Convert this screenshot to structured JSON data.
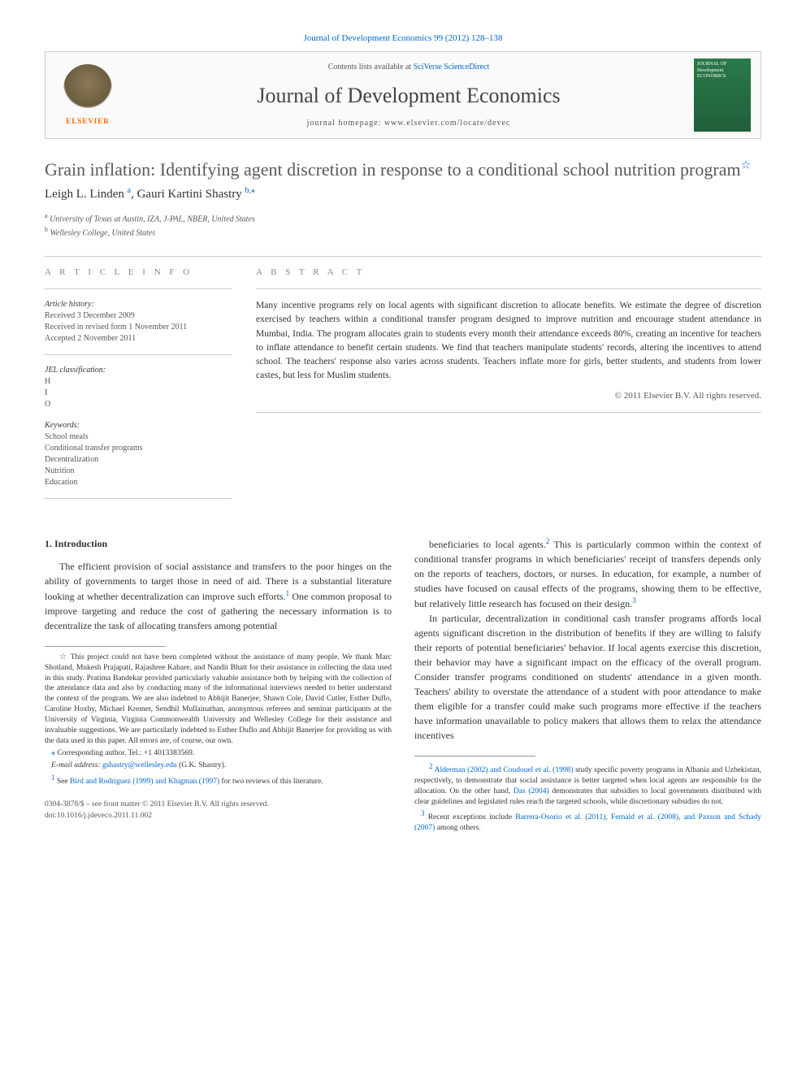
{
  "header": {
    "top_link": "Journal of Development Economics 99 (2012) 128–138",
    "contents_prefix": "Contents lists available at ",
    "contents_link": "SciVerse ScienceDirect",
    "journal_title": "Journal of Development Economics",
    "homepage_prefix": "journal homepage: ",
    "homepage_url": "www.elsevier.com/locate/devec",
    "elsevier_label": "ELSEVIER",
    "cover_text": "JOURNAL OF Development ECONOMICS"
  },
  "article": {
    "title": "Grain inflation: Identifying agent discretion in response to a conditional school nutrition program",
    "title_star": "☆",
    "authors_html": "Leigh L. Linden",
    "author1": "Leigh L. Linden ",
    "author1_sup": "a",
    "author_sep": ", ",
    "author2": "Gauri Kartini Shastry ",
    "author2_sup": "b,",
    "corr_mark": "⁎",
    "affil_a_sup": "a",
    "affil_a": " University of Texas at Austin, IZA, J-PAL, NBER, United States",
    "affil_b_sup": "b",
    "affil_b": " Wellesley College, United States"
  },
  "info": {
    "heading": "A R T I C L E   I N F O",
    "history_label": "Article history:",
    "received": "Received 3 December 2009",
    "revised": "Received in revised form 1 November 2011",
    "accepted": "Accepted 2 November 2011",
    "jel_label": "JEL classification:",
    "jel": [
      "H",
      "I",
      "O"
    ],
    "keywords_label": "Keywords:",
    "keywords": [
      "School meals",
      "Conditional transfer programs",
      "Decentralization",
      "Nutrition",
      "Education"
    ]
  },
  "abstract": {
    "heading": "A B S T R A C T",
    "text": "Many incentive programs rely on local agents with significant discretion to allocate benefits. We estimate the degree of discretion exercised by teachers within a conditional transfer program designed to improve nutrition and encourage student attendance in Mumbai, India. The program allocates grain to students every month their attendance exceeds 80%, creating an incentive for teachers to inflate attendance to benefit certain students. We find that teachers manipulate students' records, altering the incentives to attend school. The teachers' response also varies across students. Teachers inflate more for girls, better students, and students from lower castes, but less for Muslim students.",
    "copyright": "© 2011 Elsevier B.V. All rights reserved."
  },
  "body": {
    "section_num": "1.",
    "section_title": " Introduction",
    "col1_p1": "The efficient provision of social assistance and transfers to the poor hinges on the ability of governments to target those in need of aid. There is a substantial literature looking at whether decentralization can improve such efforts.",
    "col1_p1_sup": "1",
    "col1_p1_cont": " One common proposal to improve targeting and reduce the cost of gathering the necessary information is to decentralize the task of allocating transfers among potential",
    "col2_p1_a": "beneficiaries to local agents.",
    "col2_p1_sup": "2",
    "col2_p1_b": " This is particularly common within the context of conditional transfer programs in which beneficiaries' receipt of transfers depends only on the reports of teachers, doctors, or nurses. In education, for example, a number of studies have focused on causal effects of the programs, showing them to be effective, but relatively little research has focused on their design.",
    "col2_p1_sup2": "3",
    "col2_p2": "In particular, decentralization in conditional cash transfer programs affords local agents significant discretion in the distribution of benefits if they are willing to falsify their reports of potential beneficiaries' behavior. If local agents exercise this discretion, their behavior may have a significant impact on the efficacy of the overall program. Consider transfer programs conditioned on students' attendance in a given month. Teachers' ability to overstate the attendance of a student with poor attendance to make them eligible for a transfer could make such programs more effective if the teachers have information unavailable to policy makers that allows them to relax the attendance incentives"
  },
  "footnotes": {
    "star_mark": "☆",
    "star_text": " This project could not have been completed without the assistance of many people. We thank Marc Shotland, Mukesh Prajapati, Rajashree Kabare, and Nandit Bhatt for their assistance in collecting the data used in this study. Pratima Bandekar provided particularly valuable assistance both by helping with the collection of the attendance data and also by conducting many of the informational interviews needed to better understand the context of the program. We are also indebted to Abhijit Banerjee, Shawn Cole, David Cutler, Esther Duflo, Caroline Hoxby, Michael Kremer, Sendhil Mullainathan, anonymous referees and seminar participants at the University of Virginia, Virginia Commonwealth University and Wellesley College for their assistance and invaluable suggestions. We are particularly indebted to Esther Duflo and Abhijit Banerjee for providing us with the data used in this paper. All errors are, of course, our own.",
    "corr_mark": "⁎",
    "corr_text": " Corresponding author. Tel.: +1 4013383569.",
    "email_label": "E-mail address: ",
    "email": "gshastry@wellesley.edu",
    "email_suffix": " (G.K. Shastry).",
    "fn1_mark": "1",
    "fn1_a": " See ",
    "fn1_link": "Bird and Rodriguez (1999) and Klugman (1997)",
    "fn1_b": " for two reviews of this literature.",
    "fn2_mark": "2",
    "fn2_a": " ",
    "fn2_link1": "Alderman (2002) and Coudouel et al. (1998)",
    "fn2_b": " study specific poverty programs in Albania and Uzbekistan, respectively, to demonstrate that social assistance is better targeted when local agents are responsible for the allocation. On the other hand, ",
    "fn2_link2": "Das (2004)",
    "fn2_c": " demonstrates that subsidies to local governments distributed with clear guidelines and legislated rules reach the targeted schools, while discretionary subsidies do not.",
    "fn3_mark": "3",
    "fn3_a": " Recent exceptions include ",
    "fn3_link": "Barrera-Osorio et al. (2011), Fernald et al. (2008), and Paxson and Schady (2007)",
    "fn3_b": " among others."
  },
  "footer": {
    "line1": "0304-3878/$ – see front matter © 2011 Elsevier B.V. All rights reserved.",
    "line2": "doi:10.1016/j.jdeveco.2011.11.002"
  },
  "colors": {
    "link": "#0066cc",
    "text": "#333333",
    "muted": "#555555",
    "border": "#cccccc",
    "elsevier_orange": "#ff6600",
    "cover_green": "#2a7a4a"
  }
}
